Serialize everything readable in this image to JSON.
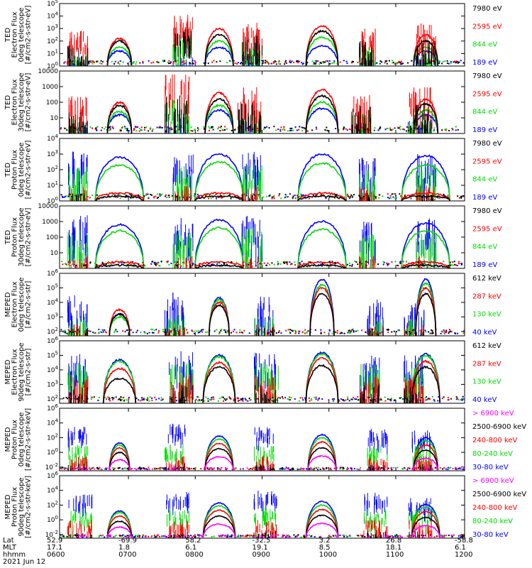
{
  "chart_data": [
    {
      "type": "line",
      "ylabel": [
        "TED",
        "Electron Flux",
        "0deg telescope",
        "[#/cm2-s-str-eV]"
      ],
      "ytick_labels": [
        "10^0",
        "10^1",
        "10^2",
        "10^3",
        "10^4",
        "10^5"
      ],
      "ylim_exp": [
        0,
        5
      ],
      "series": [
        {
          "name": "7980 eV",
          "color": "#000000"
        },
        {
          "name": "2595 eV",
          "color": "#ff0000"
        },
        {
          "name": "844 eV",
          "color": "#00dd00"
        },
        {
          "name": "189 eV",
          "color": "#0000ff"
        }
      ],
      "bursts": [
        {
          "x": 0.02,
          "w": 0.05,
          "peak": [
            1.8,
            3.0,
            1.2,
            0.8
          ]
        },
        {
          "x": 0.28,
          "w": 0.05,
          "peak": [
            3.0,
            4.2,
            2.5,
            1.0
          ]
        },
        {
          "x": 0.45,
          "w": 0.05,
          "peak": [
            2.5,
            3.5,
            2.0,
            1.0
          ]
        },
        {
          "x": 0.74,
          "w": 0.04,
          "peak": [
            2.0,
            3.0,
            1.8,
            0.8
          ]
        },
        {
          "x": 0.88,
          "w": 0.05,
          "peak": [
            2.0,
            3.5,
            1.6,
            0.8
          ]
        }
      ],
      "arches": [
        {
          "c": 0.148,
          "w": 0.03,
          "peak": [
            2.0,
            2.2,
            1.5,
            1.2
          ]
        },
        {
          "c": 0.394,
          "w": 0.035,
          "peak": [
            2.5,
            3.0,
            2.0,
            1.5
          ]
        },
        {
          "c": 0.648,
          "w": 0.04,
          "peak": [
            2.8,
            3.2,
            2.3,
            1.6
          ]
        },
        {
          "c": 0.904,
          "w": 0.03,
          "peak": [
            2.0,
            2.5,
            1.5,
            1.2
          ]
        }
      ]
    },
    {
      "type": "line",
      "ylabel": [
        "TED",
        "Electron Flux",
        "30deg telescope",
        "[#/cm2-s-str-eV]"
      ],
      "ytick_labels": [
        "10",
        "100",
        "1000",
        "10000"
      ],
      "ylim_exp": [
        0,
        4
      ],
      "series": [
        {
          "name": "7980 eV",
          "color": "#000000"
        },
        {
          "name": "2595 eV",
          "color": "#ff0000"
        },
        {
          "name": "844 eV",
          "color": "#00dd00"
        },
        {
          "name": "189 eV",
          "color": "#0000ff"
        }
      ],
      "bursts": [
        {
          "x": 0.02,
          "w": 0.05,
          "peak": [
            1.5,
            2.5,
            1.0,
            0.8
          ]
        },
        {
          "x": 0.26,
          "w": 0.06,
          "peak": [
            2.6,
            3.8,
            2.2,
            1.0
          ]
        },
        {
          "x": 0.44,
          "w": 0.06,
          "peak": [
            2.0,
            3.0,
            1.6,
            0.8
          ]
        },
        {
          "x": 0.72,
          "w": 0.05,
          "peak": [
            1.8,
            2.5,
            1.4,
            0.8
          ]
        },
        {
          "x": 0.86,
          "w": 0.06,
          "peak": [
            2.0,
            3.0,
            1.4,
            0.9
          ]
        }
      ],
      "arches": [
        {
          "c": 0.148,
          "w": 0.03,
          "peak": [
            1.8,
            2.0,
            1.4,
            1.2
          ]
        },
        {
          "c": 0.394,
          "w": 0.035,
          "peak": [
            2.2,
            2.6,
            1.8,
            1.5
          ]
        },
        {
          "c": 0.648,
          "w": 0.04,
          "peak": [
            2.4,
            2.8,
            2.0,
            1.6
          ]
        },
        {
          "c": 0.904,
          "w": 0.03,
          "peak": [
            1.9,
            2.2,
            1.5,
            1.2
          ]
        }
      ]
    },
    {
      "type": "line",
      "ylabel": [
        "TED",
        "Proton Flux",
        "0deg telescope",
        "[#/cm2-s-str-eV]"
      ],
      "ytick_labels": [
        "10^0",
        "10^1",
        "10^2",
        "10^3",
        "10^4"
      ],
      "ylim_exp": [
        0,
        4
      ],
      "series": [
        {
          "name": "7980 eV",
          "color": "#000000"
        },
        {
          "name": "2595 eV",
          "color": "#ff0000"
        },
        {
          "name": "844 eV",
          "color": "#00dd00"
        },
        {
          "name": "189 eV",
          "color": "#0000ff"
        }
      ],
      "bursts": [
        {
          "x": 0.02,
          "w": 0.05,
          "peak": [
            0.5,
            1.0,
            2.5,
            3.2
          ]
        },
        {
          "x": 0.28,
          "w": 0.05,
          "peak": [
            0.5,
            1.0,
            2.3,
            3.0
          ]
        },
        {
          "x": 0.45,
          "w": 0.05,
          "peak": [
            0.5,
            1.0,
            2.5,
            3.2
          ]
        },
        {
          "x": 0.74,
          "w": 0.04,
          "peak": [
            0.5,
            1.0,
            2.0,
            2.8
          ]
        },
        {
          "x": 0.88,
          "w": 0.05,
          "peak": [
            0.5,
            1.0,
            2.2,
            3.0
          ]
        }
      ],
      "arches": [
        {
          "c": 0.148,
          "w": 0.06,
          "peak": [
            0.3,
            0.5,
            2.3,
            2.8
          ]
        },
        {
          "c": 0.394,
          "w": 0.06,
          "peak": [
            0.3,
            0.5,
            2.5,
            3.0
          ]
        },
        {
          "c": 0.648,
          "w": 0.06,
          "peak": [
            0.3,
            0.5,
            2.4,
            3.0
          ]
        },
        {
          "c": 0.904,
          "w": 0.06,
          "peak": [
            0.3,
            0.5,
            2.3,
            2.9
          ]
        }
      ]
    },
    {
      "type": "line",
      "ylabel": [
        "TED",
        "Proton Flux",
        "30deg telescope",
        "[#/cm2-s-str-eV]"
      ],
      "ytick_labels": [
        "10",
        "100",
        "1000",
        "10000"
      ],
      "ylim_exp": [
        0,
        4
      ],
      "series": [
        {
          "name": "7980 eV",
          "color": "#000000"
        },
        {
          "name": "2595 eV",
          "color": "#ff0000"
        },
        {
          "name": "844 eV",
          "color": "#00dd00"
        },
        {
          "name": "189 eV",
          "color": "#0000ff"
        }
      ],
      "bursts": [
        {
          "x": 0.02,
          "w": 0.05,
          "peak": [
            0.3,
            0.8,
            2.5,
            3.4
          ]
        },
        {
          "x": 0.28,
          "w": 0.05,
          "peak": [
            0.3,
            0.8,
            2.5,
            3.3
          ]
        },
        {
          "x": 0.45,
          "w": 0.05,
          "peak": [
            0.3,
            0.8,
            2.7,
            3.5
          ]
        },
        {
          "x": 0.74,
          "w": 0.04,
          "peak": [
            0.3,
            0.8,
            2.2,
            3.0
          ]
        },
        {
          "x": 0.88,
          "w": 0.05,
          "peak": [
            0.3,
            0.8,
            2.4,
            3.2
          ]
        }
      ],
      "arches": [
        {
          "c": 0.148,
          "w": 0.06,
          "peak": [
            0.2,
            0.4,
            2.4,
            2.8
          ]
        },
        {
          "c": 0.394,
          "w": 0.06,
          "peak": [
            0.2,
            0.4,
            2.6,
            3.1
          ]
        },
        {
          "c": 0.648,
          "w": 0.06,
          "peak": [
            0.2,
            0.4,
            2.5,
            3.0
          ]
        },
        {
          "c": 0.904,
          "w": 0.06,
          "peak": [
            0.2,
            0.4,
            2.4,
            2.9
          ]
        }
      ]
    },
    {
      "type": "line",
      "ylabel": [
        "MEPED",
        "Electron Flux",
        "0deg telescope",
        "[#/cm2-s-str]"
      ],
      "ytick_labels": [
        "10^2",
        "10^3",
        "10^4",
        "10^5",
        "10^6"
      ],
      "ylim_exp": [
        1.7,
        6
      ],
      "series": [
        {
          "name": "612 keV",
          "color": "#000000"
        },
        {
          "name": "287 keV",
          "color": "#ff0000"
        },
        {
          "name": "130 keV",
          "color": "#00dd00"
        },
        {
          "name": "40 keV",
          "color": "#0000ff"
        }
      ],
      "bursts": [
        {
          "x": 0.02,
          "w": 0.05,
          "peak": [
            2.3,
            2.5,
            3.0,
            4.5
          ]
        },
        {
          "x": 0.26,
          "w": 0.05,
          "peak": [
            2.3,
            2.5,
            3.2,
            4.7
          ]
        },
        {
          "x": 0.48,
          "w": 0.05,
          "peak": [
            2.3,
            2.5,
            3.0,
            4.4
          ]
        },
        {
          "x": 0.76,
          "w": 0.04,
          "peak": [
            2.3,
            2.5,
            3.0,
            4.2
          ]
        },
        {
          "x": 0.85,
          "w": 0.05,
          "peak": [
            2.3,
            2.5,
            3.0,
            4.2
          ]
        }
      ],
      "arches": [
        {
          "c": 0.148,
          "w": 0.025,
          "peak": [
            3.2,
            3.5,
            3.0,
            3.2
          ]
        },
        {
          "c": 0.394,
          "w": 0.025,
          "peak": [
            3.8,
            4.0,
            4.2,
            4.3
          ]
        },
        {
          "c": 0.648,
          "w": 0.03,
          "peak": [
            4.6,
            5.0,
            5.2,
            5.6
          ]
        },
        {
          "c": 0.904,
          "w": 0.025,
          "peak": [
            4.6,
            5.0,
            5.3,
            5.6
          ]
        }
      ]
    },
    {
      "type": "line",
      "ylabel": [
        "MEPED",
        "Electron Flux",
        "90deg telescope",
        "[#/cm2-s-str]"
      ],
      "ytick_labels": [
        "10^2",
        "10^3",
        "10^4",
        "10^5",
        "10^6"
      ],
      "ylim_exp": [
        1.7,
        6
      ],
      "series": [
        {
          "name": "612 keV",
          "color": "#000000"
        },
        {
          "name": "287 keV",
          "color": "#ff0000"
        },
        {
          "name": "130 keV",
          "color": "#00dd00"
        },
        {
          "name": "40 keV",
          "color": "#0000ff"
        }
      ],
      "bursts": [
        {
          "x": 0.02,
          "w": 0.05,
          "peak": [
            3.0,
            3.6,
            4.5,
            5.2
          ]
        },
        {
          "x": 0.27,
          "w": 0.06,
          "peak": [
            3.0,
            3.8,
            4.5,
            5.3
          ]
        },
        {
          "x": 0.48,
          "w": 0.06,
          "peak": [
            3.0,
            3.8,
            4.6,
            5.2
          ]
        },
        {
          "x": 0.74,
          "w": 0.05,
          "peak": [
            3.0,
            3.6,
            4.4,
            5.0
          ]
        },
        {
          "x": 0.85,
          "w": 0.05,
          "peak": [
            3.0,
            3.6,
            4.4,
            5.0
          ]
        }
      ],
      "arches": [
        {
          "c": 0.148,
          "w": 0.04,
          "peak": [
            3.4,
            4.1,
            4.6,
            4.7
          ]
        },
        {
          "c": 0.394,
          "w": 0.04,
          "peak": [
            4.2,
            4.5,
            4.9,
            5.0
          ]
        },
        {
          "c": 0.648,
          "w": 0.04,
          "peak": [
            4.3,
            4.8,
            5.1,
            5.2
          ]
        },
        {
          "c": 0.904,
          "w": 0.035,
          "peak": [
            4.2,
            4.6,
            5.0,
            5.1
          ]
        }
      ]
    },
    {
      "type": "line",
      "ylabel": [
        "MEPED",
        "Proton Flux",
        "0deg telescope",
        "[#/cm2-s-str-keV]"
      ],
      "ytick_labels": [
        "10^-2",
        "10^0",
        "10^2",
        "10^4",
        "10^6"
      ],
      "ylim_exp": [
        -2.5,
        6
      ],
      "series": [
        {
          "name": "> 6900 keV",
          "color": "#ff00ff"
        },
        {
          "name": "2500-6900 keV",
          "color": "#000000"
        },
        {
          "name": "240-800 keV",
          "color": "#ff0000"
        },
        {
          "name": "80-240 keV",
          "color": "#00dd00"
        },
        {
          "name": "30-80 keV",
          "color": "#0000ff"
        }
      ],
      "bursts": [
        {
          "x": 0.02,
          "w": 0.05,
          "peak": [
            -2,
            -1.5,
            -0.5,
            1.0,
            3.5
          ]
        },
        {
          "x": 0.26,
          "w": 0.05,
          "peak": [
            -2,
            -1.5,
            -0.5,
            1.2,
            4.0
          ]
        },
        {
          "x": 0.48,
          "w": 0.05,
          "peak": [
            -2,
            -1.5,
            -0.5,
            1.0,
            3.5
          ]
        },
        {
          "x": 0.76,
          "w": 0.05,
          "peak": [
            -2,
            -1.5,
            -0.5,
            1.0,
            3.2
          ]
        },
        {
          "x": 0.87,
          "w": 0.05,
          "peak": [
            -2,
            -1.5,
            -0.5,
            1.0,
            3.0
          ]
        }
      ],
      "arches": [
        {
          "c": 0.148,
          "w": 0.025,
          "peak": [
            -1.0,
            0.0,
            0.6,
            1.0,
            1.3
          ]
        },
        {
          "c": 0.394,
          "w": 0.035,
          "peak": [
            -0.6,
            0.5,
            1.2,
            1.8,
            2.2
          ]
        },
        {
          "c": 0.648,
          "w": 0.035,
          "peak": [
            -0.5,
            0.6,
            1.4,
            2.0,
            2.4
          ]
        },
        {
          "c": 0.904,
          "w": 0.03,
          "peak": [
            -0.8,
            0.3,
            1.0,
            1.6,
            2.0
          ]
        }
      ]
    },
    {
      "type": "line",
      "ylabel": [
        "MEPED",
        "Proton Flux",
        "90deg telescope",
        "[#/cm2-s-str-keV]"
      ],
      "ytick_labels": [
        "10^-2",
        "10^0",
        "10^2",
        "10^4",
        "10^6"
      ],
      "ylim_exp": [
        -2.5,
        6
      ],
      "series": [
        {
          "name": "> 6900 keV",
          "color": "#ff00ff"
        },
        {
          "name": "2500-6900 keV",
          "color": "#000000"
        },
        {
          "name": "240-800 keV",
          "color": "#ff0000"
        },
        {
          "name": "80-240 keV",
          "color": "#00dd00"
        },
        {
          "name": "30-80 keV",
          "color": "#0000ff"
        }
      ],
      "bursts": [
        {
          "x": 0.02,
          "w": 0.06,
          "peak": [
            -2,
            -1.5,
            0.0,
            1.5,
            3.5
          ]
        },
        {
          "x": 0.26,
          "w": 0.06,
          "peak": [
            -2,
            -1.5,
            0.0,
            1.5,
            4.0
          ]
        },
        {
          "x": 0.48,
          "w": 0.06,
          "peak": [
            -2,
            -1.5,
            0.0,
            1.8,
            4.0
          ]
        },
        {
          "x": 0.75,
          "w": 0.06,
          "peak": [
            -2,
            -1.5,
            0.0,
            1.5,
            3.8
          ]
        },
        {
          "x": 0.86,
          "w": 0.06,
          "peak": [
            -2,
            -1.5,
            0.0,
            1.5,
            3.0
          ]
        }
      ],
      "arches": [
        {
          "c": 0.148,
          "w": 0.03,
          "peak": [
            -1.0,
            -0.2,
            0.5,
            1.0,
            1.2
          ]
        },
        {
          "c": 0.394,
          "w": 0.04,
          "peak": [
            -0.6,
            0.5,
            1.3,
            1.9,
            2.3
          ]
        },
        {
          "c": 0.648,
          "w": 0.04,
          "peak": [
            -0.5,
            0.6,
            1.4,
            2.0,
            2.5
          ]
        },
        {
          "c": 0.904,
          "w": 0.035,
          "peak": [
            -0.8,
            0.3,
            1.1,
            1.7,
            2.1
          ]
        }
      ]
    }
  ],
  "xaxis": {
    "row_labels": [
      "Lat",
      "MLT",
      "hhmm",
      "2021 Jun 12"
    ],
    "ticks": [
      {
        "lat": "52.9",
        "mlt": "17.1",
        "hhmm": "0600"
      },
      {
        "lat": "-69.9",
        "mlt": "1.8",
        "hhmm": "0700"
      },
      {
        "lat": "58.2",
        "mlt": "6.1",
        "hhmm": "0800"
      },
      {
        "lat": "-32.5",
        "mlt": "19.1",
        "hhmm": "0900"
      },
      {
        "lat": "3.2",
        "mlt": "8.5",
        "hhmm": "1000"
      },
      {
        "lat": "26.8",
        "mlt": "18.1",
        "hhmm": "1100"
      },
      {
        "lat": "-58.8",
        "mlt": "6.1",
        "hhmm": "1200"
      }
    ]
  }
}
